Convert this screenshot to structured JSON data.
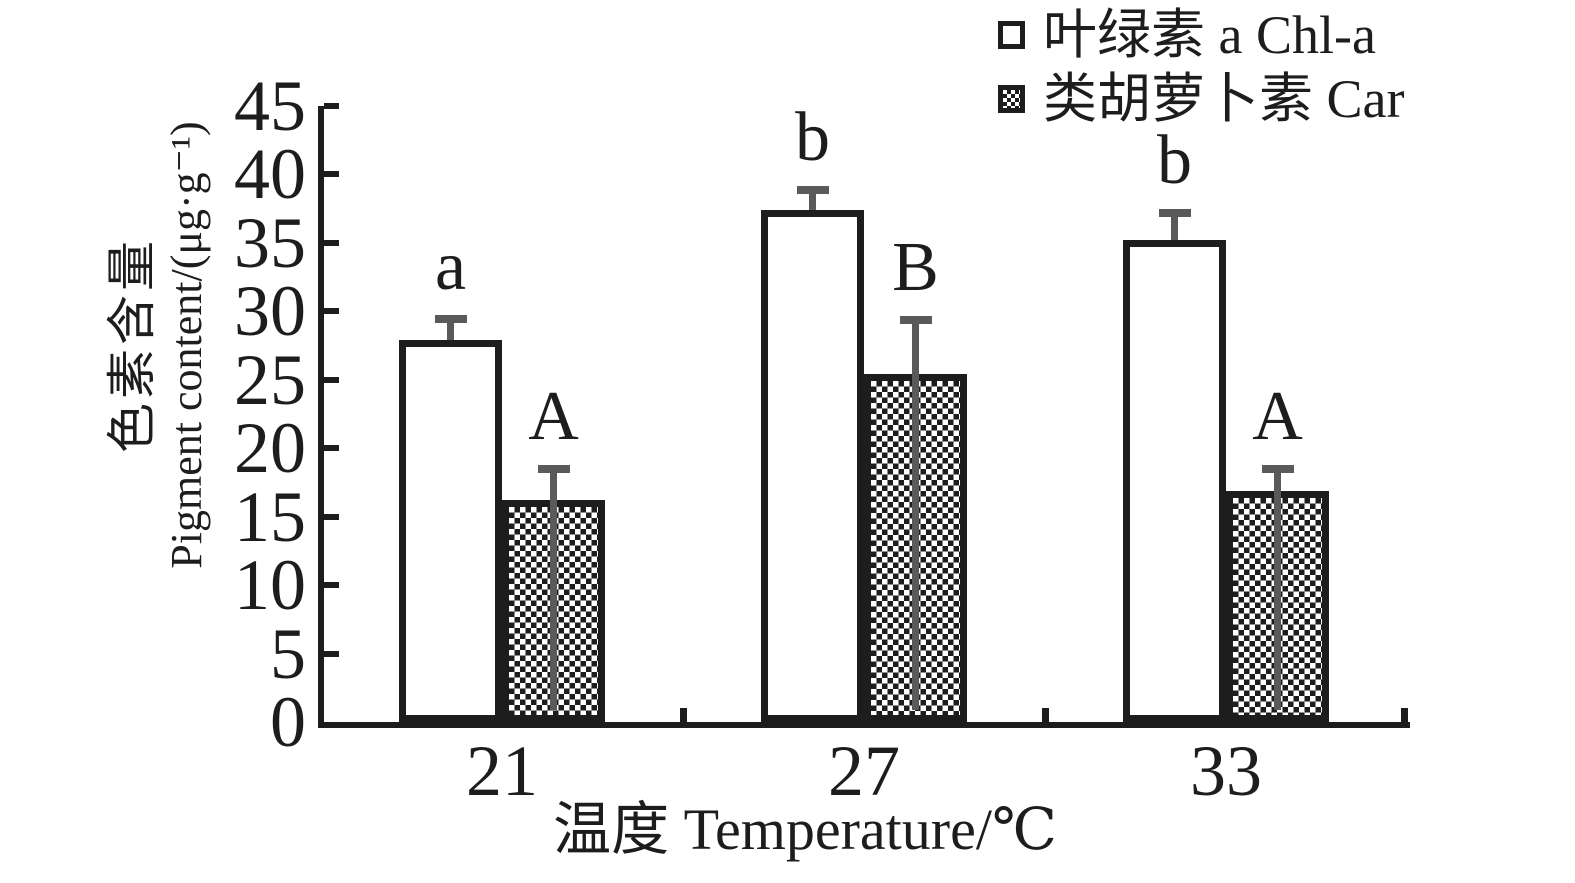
{
  "figure": {
    "background": "#ffffff",
    "ink_color": "#1d1d1d",
    "error_bar_color": "#5a5a5a"
  },
  "chart_data": {
    "type": "bar",
    "title": "",
    "categories": [
      "21",
      "27",
      "33"
    ],
    "xlabel": "温度 Temperature/℃",
    "ylabel_zh": "色素含量",
    "ylabel_en": "Pigment content/(μg·g⁻¹)",
    "ylim": [
      0,
      45
    ],
    "yticks": [
      0,
      5,
      10,
      15,
      20,
      25,
      30,
      35,
      40,
      45
    ],
    "grid": false,
    "legend_position": "top-right",
    "series": [
      {
        "name": "叶绿素 a Chl-a",
        "swatch": "white-square",
        "values": [
          27.9,
          37.4,
          35.2
        ],
        "errors": [
          1.7,
          1.6,
          2.1
        ],
        "sig_letters": [
          "a",
          "b",
          "b"
        ]
      },
      {
        "name": "类胡萝卜素 Car",
        "swatch": "checker-square",
        "values": [
          16.2,
          25.4,
          16.9
        ],
        "errors": [
          2.4,
          4.1,
          1.7
        ],
        "sig_letters": [
          "A",
          "B",
          "A"
        ]
      }
    ]
  }
}
